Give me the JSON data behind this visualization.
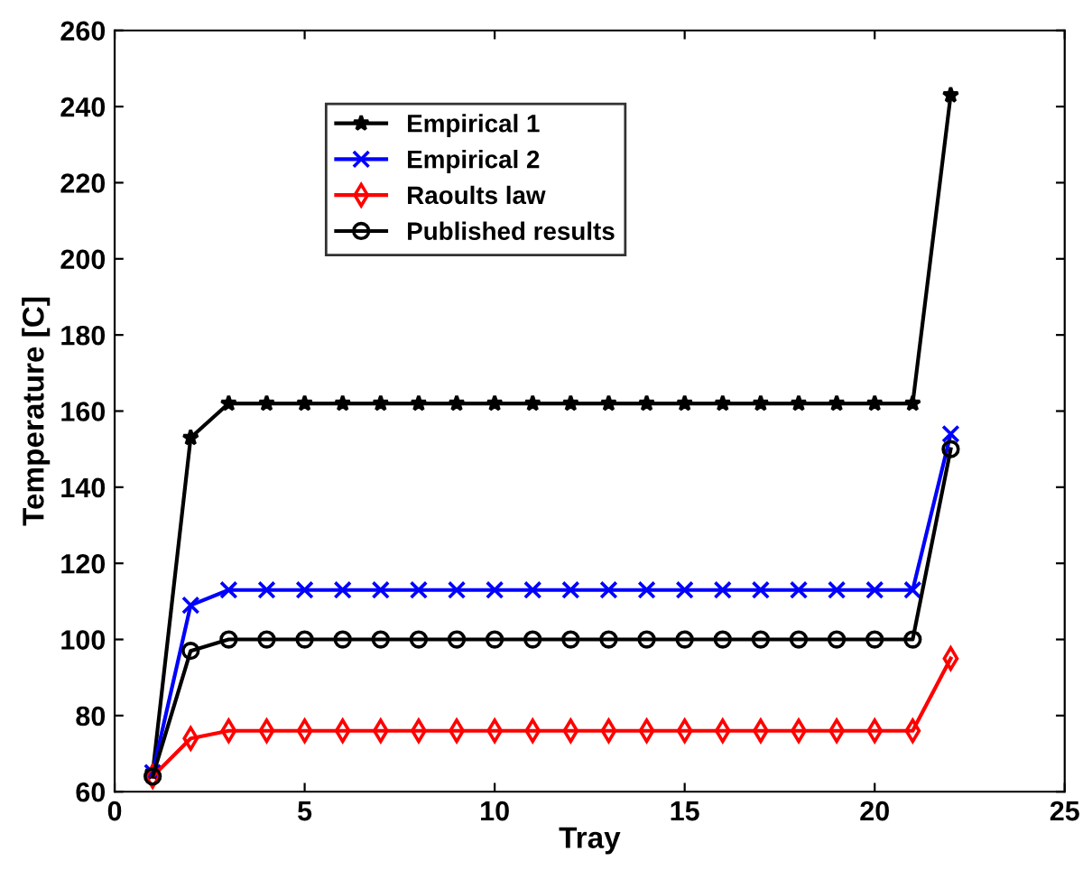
{
  "chart_data": {
    "type": "line",
    "xlabel": "Tray",
    "ylabel": "Temperature [C]",
    "x": [
      1,
      2,
      3,
      4,
      5,
      6,
      7,
      8,
      9,
      10,
      11,
      12,
      13,
      14,
      15,
      16,
      17,
      18,
      19,
      20,
      21,
      22
    ],
    "series": [
      {
        "name": "Empirical 1",
        "color": "#000000",
        "marker": "star",
        "values": [
          65,
          153,
          162,
          162,
          162,
          162,
          162,
          162,
          162,
          162,
          162,
          162,
          162,
          162,
          162,
          162,
          162,
          162,
          162,
          162,
          162,
          243
        ]
      },
      {
        "name": "Empirical 2",
        "color": "#0000ff",
        "marker": "cross",
        "values": [
          65,
          109,
          113,
          113,
          113,
          113,
          113,
          113,
          113,
          113,
          113,
          113,
          113,
          113,
          113,
          113,
          113,
          113,
          113,
          113,
          113,
          154
        ]
      },
      {
        "name": "Raoults law",
        "color": "#ff0000",
        "marker": "diamond",
        "values": [
          64,
          74,
          76,
          76,
          76,
          76,
          76,
          76,
          76,
          76,
          76,
          76,
          76,
          76,
          76,
          76,
          76,
          76,
          76,
          76,
          76,
          95
        ]
      },
      {
        "name": "Published results",
        "color": "#000000",
        "marker": "circle",
        "values": [
          64,
          97,
          100,
          100,
          100,
          100,
          100,
          100,
          100,
          100,
          100,
          100,
          100,
          100,
          100,
          100,
          100,
          100,
          100,
          100,
          100,
          150
        ]
      }
    ],
    "xlim": [
      0,
      25
    ],
    "xticks": [
      0,
      5,
      10,
      15,
      20,
      25
    ],
    "ylim": [
      60,
      260
    ],
    "yticks": [
      60,
      80,
      100,
      120,
      140,
      160,
      180,
      200,
      220,
      240,
      260
    ],
    "legend": "top",
    "grid": false,
    "line_style": "solid"
  }
}
